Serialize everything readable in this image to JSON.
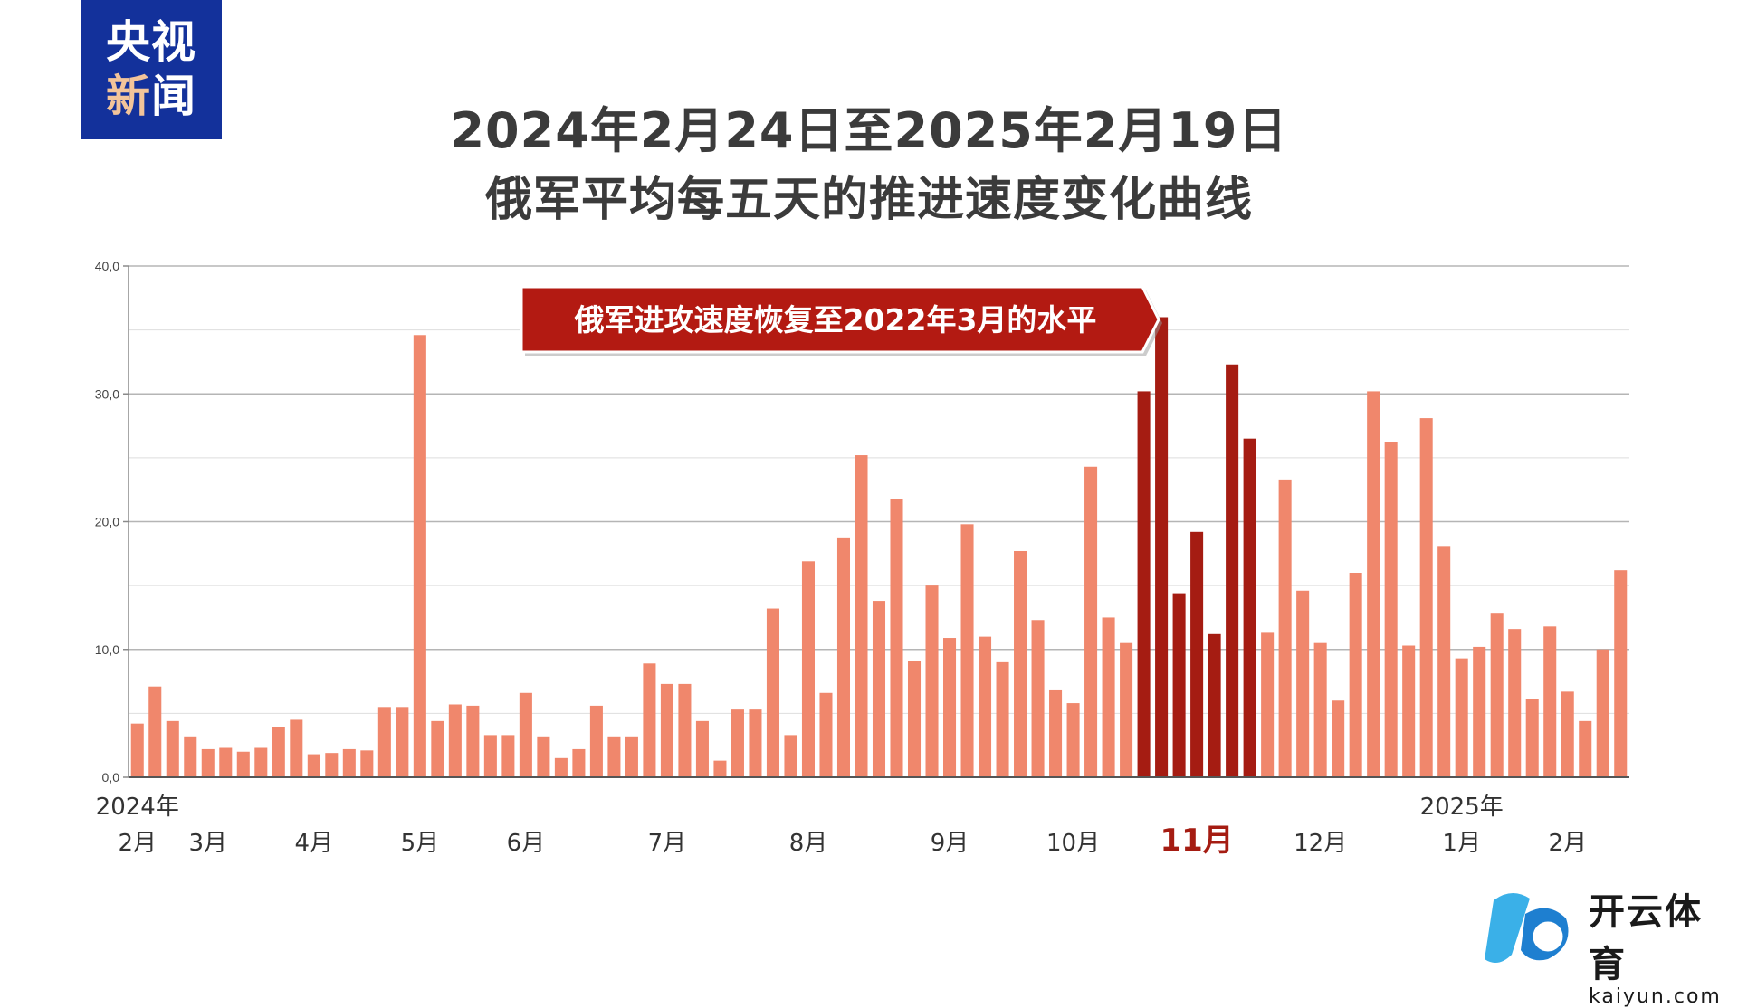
{
  "logo": {
    "line1": "央视",
    "line2a": "新",
    "line2b": "闻"
  },
  "title_line1": "2024年2月24日至2025年2月19日",
  "title_line2": "俄军平均每五天的推进速度变化曲线",
  "watermark": {
    "cn": "开云体育",
    "en": "kaiyun.com"
  },
  "colors": {
    "normal_bar": "#f0876c",
    "highlight_bar": "#a51c12",
    "callout": "#b31a12",
    "logo_bg": "#13319b"
  },
  "chart_data": {
    "type": "bar",
    "ylim": [
      0,
      40
    ],
    "yticks": [
      "0,0",
      "10,0",
      "20,0",
      "30,0",
      "40,0"
    ],
    "grid": true,
    "values": [
      4.2,
      7.1,
      4.4,
      3.2,
      2.2,
      2.3,
      2.0,
      2.3,
      3.9,
      4.5,
      1.8,
      1.9,
      2.2,
      2.1,
      5.5,
      5.5,
      34.6,
      4.4,
      5.7,
      5.6,
      3.3,
      3.3,
      6.6,
      3.2,
      1.5,
      2.2,
      5.6,
      3.2,
      3.2,
      8.9,
      7.3,
      7.3,
      4.4,
      1.3,
      5.3,
      5.3,
      13.2,
      3.3,
      16.9,
      6.6,
      18.7,
      25.2,
      13.8,
      21.8,
      9.1,
      15.0,
      10.9,
      19.8,
      11.0,
      9.0,
      17.7,
      12.3,
      6.8,
      5.8,
      24.3,
      12.5,
      10.5,
      30.2,
      36.0,
      14.4,
      19.2,
      11.2,
      32.3,
      26.5,
      11.3,
      23.3,
      14.6,
      10.5,
      6.0,
      16.0,
      30.2,
      26.2,
      10.3,
      28.1,
      18.1,
      9.3,
      10.2,
      12.8,
      11.6,
      6.1,
      11.8,
      6.7,
      4.4,
      10.0,
      16.2
    ],
    "highlight_range": [
      57,
      63
    ],
    "x_labels": [
      {
        "text": "2024年",
        "bar": 0,
        "row": "year"
      },
      {
        "text": "2月",
        "bar": 0,
        "row": "month"
      },
      {
        "text": "3月",
        "bar": 4,
        "row": "month"
      },
      {
        "text": "4月",
        "bar": 10,
        "row": "month"
      },
      {
        "text": "5月",
        "bar": 16,
        "row": "month"
      },
      {
        "text": "6月",
        "bar": 22,
        "row": "month"
      },
      {
        "text": "7月",
        "bar": 30,
        "row": "month"
      },
      {
        "text": "8月",
        "bar": 38,
        "row": "month"
      },
      {
        "text": "9月",
        "bar": 46,
        "row": "month"
      },
      {
        "text": "10月",
        "bar": 53,
        "row": "month"
      },
      {
        "text": "11月",
        "bar": 60,
        "row": "month",
        "highlight": true
      },
      {
        "text": "12月",
        "bar": 67,
        "row": "month"
      },
      {
        "text": "2025年",
        "bar": 75,
        "row": "year"
      },
      {
        "text": "1月",
        "bar": 75,
        "row": "month"
      },
      {
        "text": "2月",
        "bar": 81,
        "row": "month"
      }
    ],
    "annotation": {
      "text": "俄军进攻速度恢复至2022年3月的水平",
      "bar": 58
    }
  }
}
